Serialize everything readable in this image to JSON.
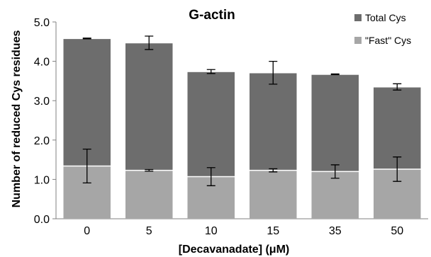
{
  "chart_data": {
    "type": "bar",
    "stacked_overlay": true,
    "title": "G-actin",
    "xlabel": "[Decavanadate] (μM)",
    "ylabel": "Number of reduced Cys residues",
    "categories": [
      "0",
      "5",
      "10",
      "15",
      "35",
      "50"
    ],
    "ylim": [
      0,
      5
    ],
    "yticks": [
      "0.0",
      "1.0",
      "2.0",
      "3.0",
      "4.0",
      "5.0"
    ],
    "grid": false,
    "legend_position": "top-right",
    "series": [
      {
        "name": "Total Cys",
        "color": "#6d6d6d",
        "values": [
          4.58,
          4.47,
          3.74,
          3.71,
          3.67,
          3.35
        ],
        "errors": [
          0.01,
          0.17,
          0.05,
          0.29,
          0.01,
          0.08
        ]
      },
      {
        "name": "\"Fast\" Cys",
        "color": "#a6a6a6",
        "values": [
          1.34,
          1.23,
          1.07,
          1.23,
          1.2,
          1.26
        ],
        "errors": [
          0.43,
          0.02,
          0.23,
          0.04,
          0.17,
          0.31
        ]
      }
    ]
  }
}
